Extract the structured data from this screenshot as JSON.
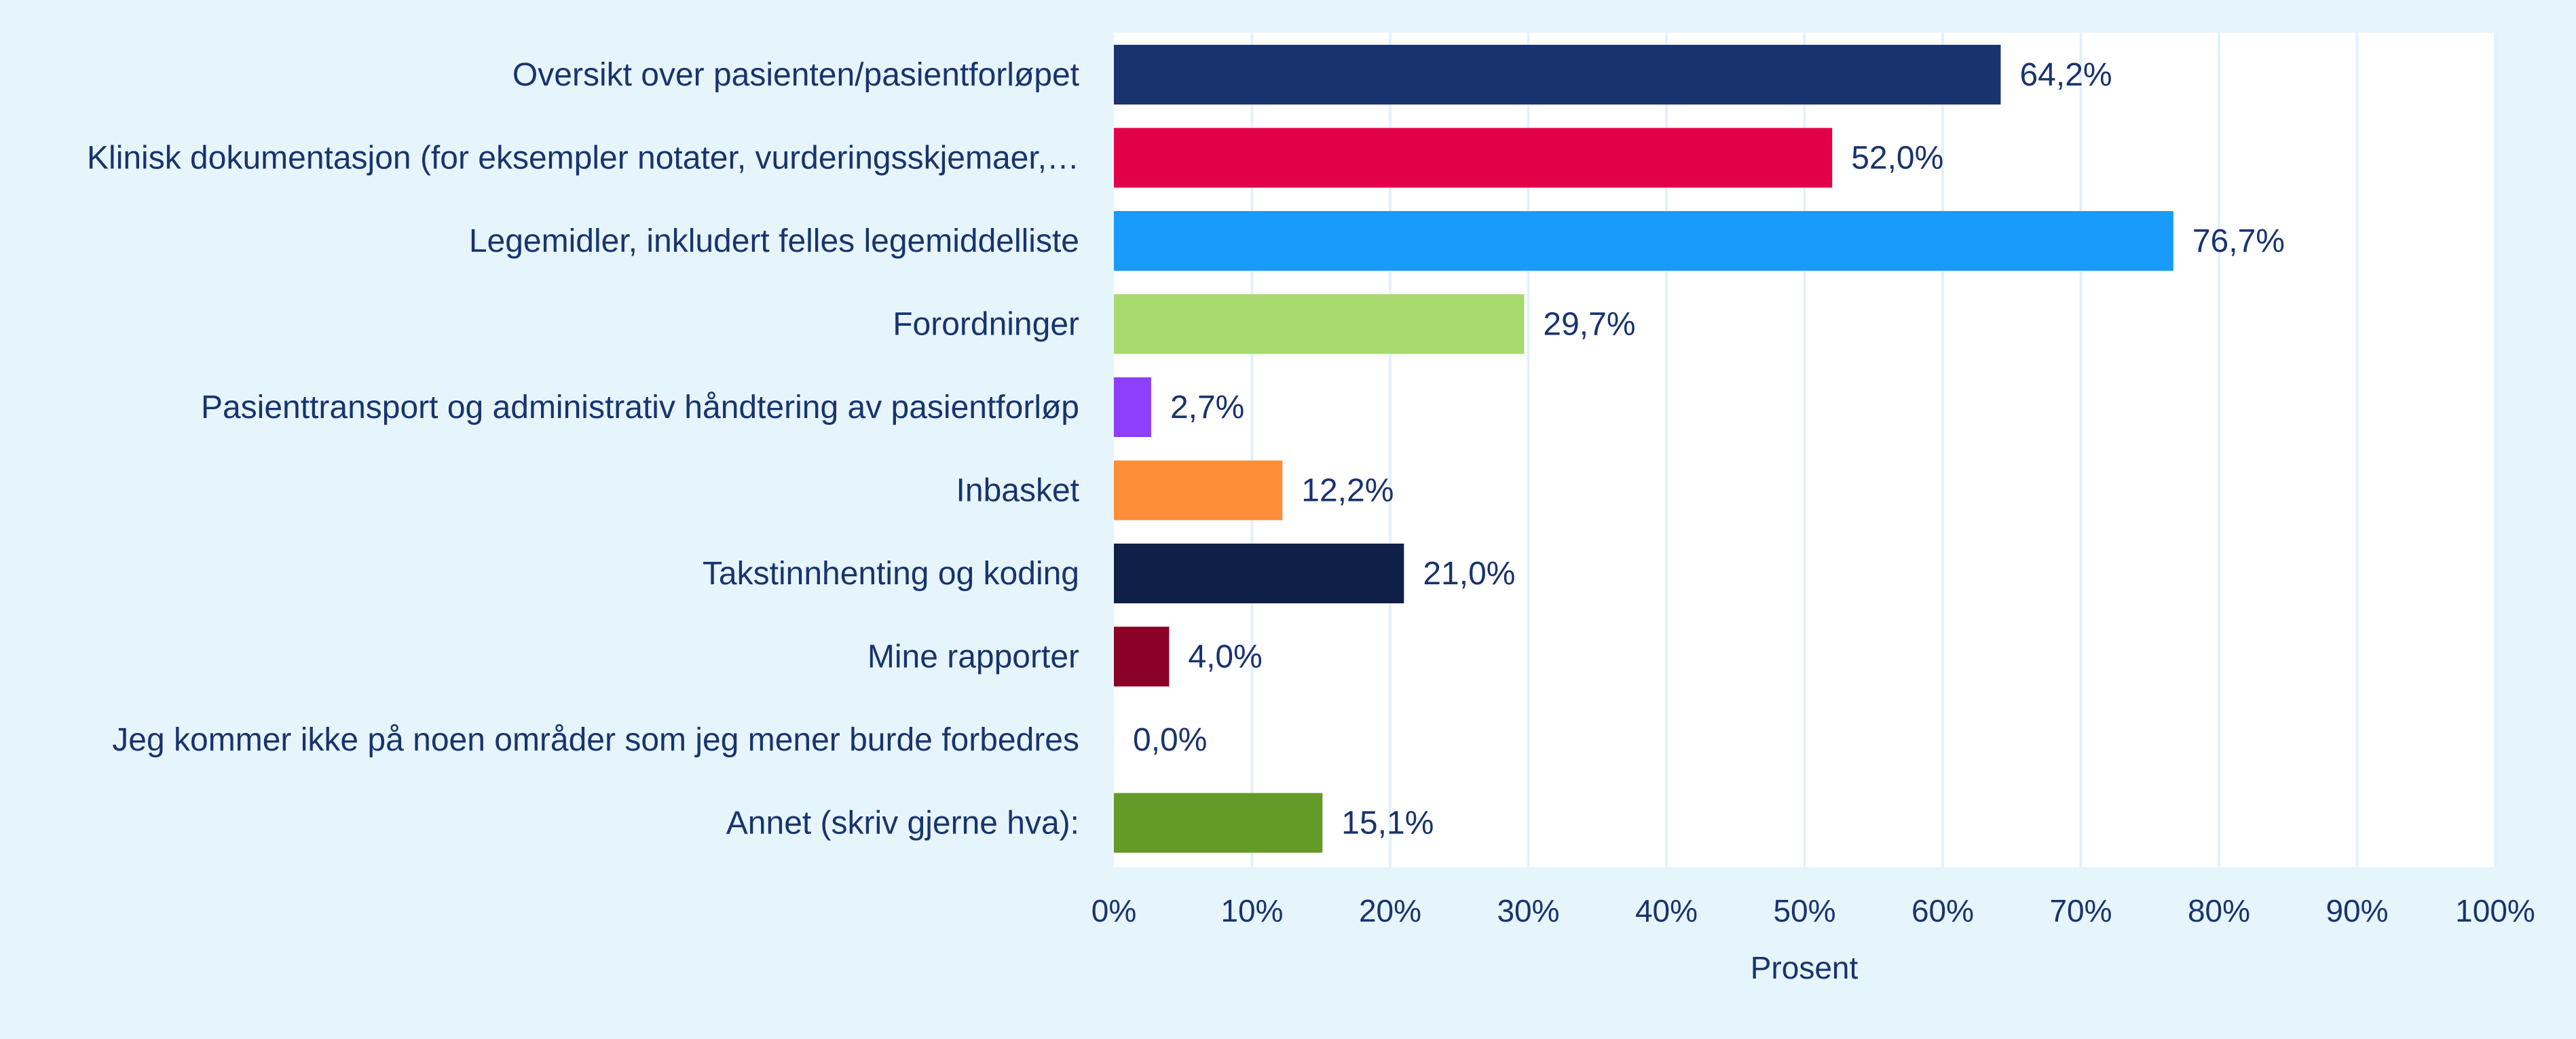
{
  "chart_data": {
    "type": "bar",
    "orientation": "horizontal",
    "title": "",
    "xlabel": "Prosent",
    "ylabel": "",
    "xlim": [
      0,
      100
    ],
    "x_ticks": [
      "0%",
      "10%",
      "20%",
      "30%",
      "40%",
      "50%",
      "60%",
      "70%",
      "80%",
      "90%",
      "100%"
    ],
    "grid": "vertical",
    "categories": [
      "Oversikt over pasienten/pasientforløpet",
      "Klinisk dokumentasjon (for eksempler notater, vurderingsskjemaer,…",
      "Legemidler, inkludert felles legemiddelliste",
      "Forordninger",
      "Pasienttransport og administrativ håndtering av pasientforløp",
      "Inbasket",
      "Takstinnhenting og koding",
      "Mine rapporter",
      "Jeg kommer ikke på noen områder som jeg mener burde forbedres",
      "Annet (skriv gjerne hva):"
    ],
    "values": [
      64.2,
      52.0,
      76.7,
      29.7,
      2.7,
      12.2,
      21.0,
      4.0,
      0.0,
      15.1
    ],
    "value_labels": [
      "64,2%",
      "52,0%",
      "76,7%",
      "29,7%",
      "2,7%",
      "12,2%",
      "21,0%",
      "4,0%",
      "0,0%",
      "15,1%"
    ],
    "colors": [
      "#19336e",
      "#e2004a",
      "#199bfc",
      "#a8da6e",
      "#8d3ffb",
      "#ff8e3a",
      "#101f47",
      "#8a0027",
      "#ffffff",
      "#649a27"
    ]
  }
}
